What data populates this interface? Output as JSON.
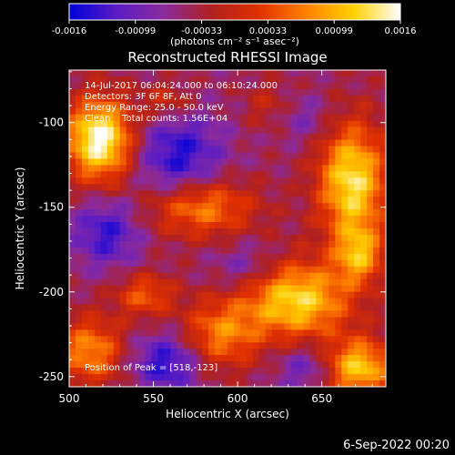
{
  "chart_data": {
    "type": "heatmap",
    "title": "Reconstructed RHESSI Image",
    "xlabel": "Heliocentric X (arcsec)",
    "ylabel": "Heliocentric Y (arcsec)",
    "xlim": [
      500,
      688
    ],
    "ylim": [
      -256,
      -69
    ],
    "x_ticks": [
      "500",
      "550",
      "600",
      "650"
    ],
    "x_tick_values": [
      500,
      550,
      600,
      650
    ],
    "y_ticks": [
      "-100",
      "-150",
      "-200",
      "-250"
    ],
    "y_tick_values": [
      -100,
      -150,
      -200,
      -250
    ],
    "colorbar": {
      "min": -0.0016,
      "max": 0.0016,
      "tick_labels": [
        "-0.0016",
        "-0.00099",
        "-0.00033",
        "0.00033",
        "0.00099",
        "0.0016"
      ],
      "unit_label": "(photons cm⁻² s⁻¹ asec⁻²)",
      "colormap": [
        "#0000d8",
        "#5a1cc4",
        "#8a2a9e",
        "#b02020",
        "#e03000",
        "#ff8000",
        "#ffd000",
        "#ffffff"
      ]
    },
    "annotations": [
      "14-Jul-2017 06:04:24.000 to 06:10:24.000",
      "Detectors: 3F 6F 8F, Att 0",
      "Energy Range: 25.0 - 50.0 keV",
      "Clean    Total counts: 1.56E+04"
    ],
    "peak_label": "Position of Peak = [518,-123]",
    "peak": [
      518,
      -123
    ],
    "grid": false,
    "blobs": [
      {
        "x": 518,
        "y": -110,
        "sx": 14,
        "sy": 17,
        "amp": 2.1
      },
      {
        "x": 578,
        "y": -150,
        "sx": 22,
        "sy": 12,
        "amp": 1.2
      },
      {
        "x": 668,
        "y": -135,
        "sx": 14,
        "sy": 24,
        "amp": 1.8
      },
      {
        "x": 635,
        "y": -205,
        "sx": 22,
        "sy": 16,
        "amp": 1.7
      },
      {
        "x": 672,
        "y": -178,
        "sx": 10,
        "sy": 12,
        "amp": 1.2
      },
      {
        "x": 590,
        "y": -225,
        "sx": 16,
        "sy": 14,
        "amp": 1.1
      },
      {
        "x": 545,
        "y": -202,
        "sx": 12,
        "sy": 9,
        "amp": 0.9
      },
      {
        "x": 512,
        "y": -235,
        "sx": 14,
        "sy": 14,
        "amp": 1.2
      },
      {
        "x": 672,
        "y": -245,
        "sx": 14,
        "sy": 12,
        "amp": 1.6
      },
      {
        "x": 558,
        "y": -88,
        "sx": 10,
        "sy": 8,
        "amp": 0.6
      },
      {
        "x": 618,
        "y": -90,
        "sx": 10,
        "sy": 10,
        "amp": 0.4
      }
    ],
    "holes": [
      {
        "x": 565,
        "y": -120,
        "sx": 18,
        "sy": 18,
        "amp": 1.0
      },
      {
        "x": 522,
        "y": -165,
        "sx": 14,
        "sy": 14,
        "amp": 0.9
      },
      {
        "x": 558,
        "y": -242,
        "sx": 14,
        "sy": 12,
        "amp": 1.0
      },
      {
        "x": 640,
        "y": -245,
        "sx": 12,
        "sy": 10,
        "amp": 0.6
      },
      {
        "x": 605,
        "y": -185,
        "sx": 14,
        "sy": 10,
        "amp": 0.5
      },
      {
        "x": 640,
        "y": -98,
        "sx": 12,
        "sy": 10,
        "amp": 0.4
      }
    ]
  },
  "date_stamp": "6-Sep-2022 00:20"
}
